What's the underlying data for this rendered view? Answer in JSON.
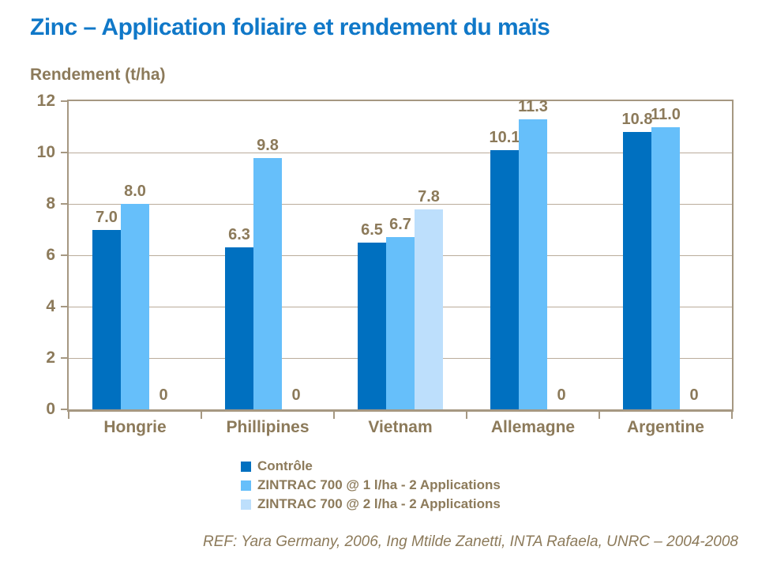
{
  "title": "Zinc – Application foliaire et rendement du maïs",
  "footer": "REF: Yara Germany, 2006, Ing Mtilde Zanetti, INTA Rafaela, UNRC – 2004-2008",
  "colors": {
    "title_blue": "#1078C8",
    "text_brown": "#8C7A5A",
    "axis_tan": "#A69882",
    "grid_tan": "#BAAC9B",
    "background": "#FFFFFF"
  },
  "chart_data": {
    "type": "bar",
    "title": "Zinc – Application foliaire et rendement du maïs",
    "xlabel": "",
    "ylabel": "Rendement (t/ha)",
    "ylim": [
      0,
      12
    ],
    "ytick_step": 2,
    "ytick_labels": [
      "0",
      "2",
      "4",
      "6",
      "8",
      "10",
      "12"
    ],
    "grid": true,
    "legend_position": "bottom",
    "categories": [
      "Hongrie",
      "Phillipines",
      "Vietnam",
      "Allemagne",
      "Argentine"
    ],
    "series": [
      {
        "name": "Contrôle",
        "color": "#0070C0",
        "values": [
          7.0,
          6.3,
          6.5,
          10.1,
          10.8
        ],
        "labels": [
          "7.0",
          "6.3",
          "6.5",
          "10.1",
          "10.8"
        ]
      },
      {
        "name": "ZINTRAC 700 @ 1 l/ha - 2 Applications",
        "color": "#66BFFA",
        "values": [
          8.0,
          9.8,
          6.7,
          11.3,
          11.0
        ],
        "labels": [
          "8.0",
          "9.8",
          "6.7",
          "11.3",
          "11.0"
        ]
      },
      {
        "name": "ZINTRAC 700 @ 2 l/ha - 2 Applications",
        "color": "#BDDFFC",
        "values": [
          0,
          0,
          7.8,
          0,
          0
        ],
        "labels": [
          "0",
          "0",
          "7.8",
          "0",
          "0"
        ]
      }
    ]
  }
}
